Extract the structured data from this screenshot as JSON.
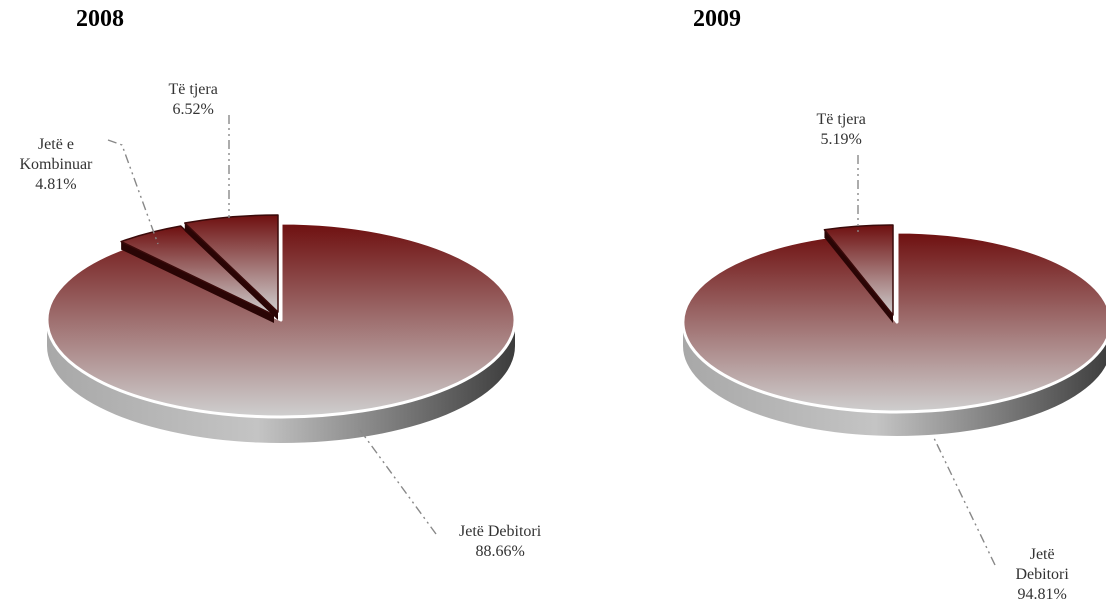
{
  "chart_data": [
    {
      "type": "pie",
      "title": "2008",
      "slices": [
        {
          "label_lines": [
            "Jetë Debitori",
            "88.66%"
          ],
          "value": 88.66
        },
        {
          "label_lines": [
            "Jetë e",
            "Kombinuar",
            "4.81%"
          ],
          "value": 4.81
        },
        {
          "label_lines": [
            "Të tjera",
            "6.52%"
          ],
          "value": 6.52
        }
      ]
    },
    {
      "type": "pie",
      "title": "2009",
      "slices": [
        {
          "label_lines": [
            "Jetë",
            "Debitori",
            "94.81%"
          ],
          "value": 94.81
        },
        {
          "label_lines": [
            "Të tjera",
            "5.19%"
          ],
          "value": 5.19
        }
      ]
    }
  ],
  "colors": {
    "slice_top": "#6e0f0f",
    "slice_bottom": "#c8c8c8",
    "edge_dark": "#4a4a4a",
    "edge_light": "#bdbdbd",
    "leader": "#888888"
  }
}
